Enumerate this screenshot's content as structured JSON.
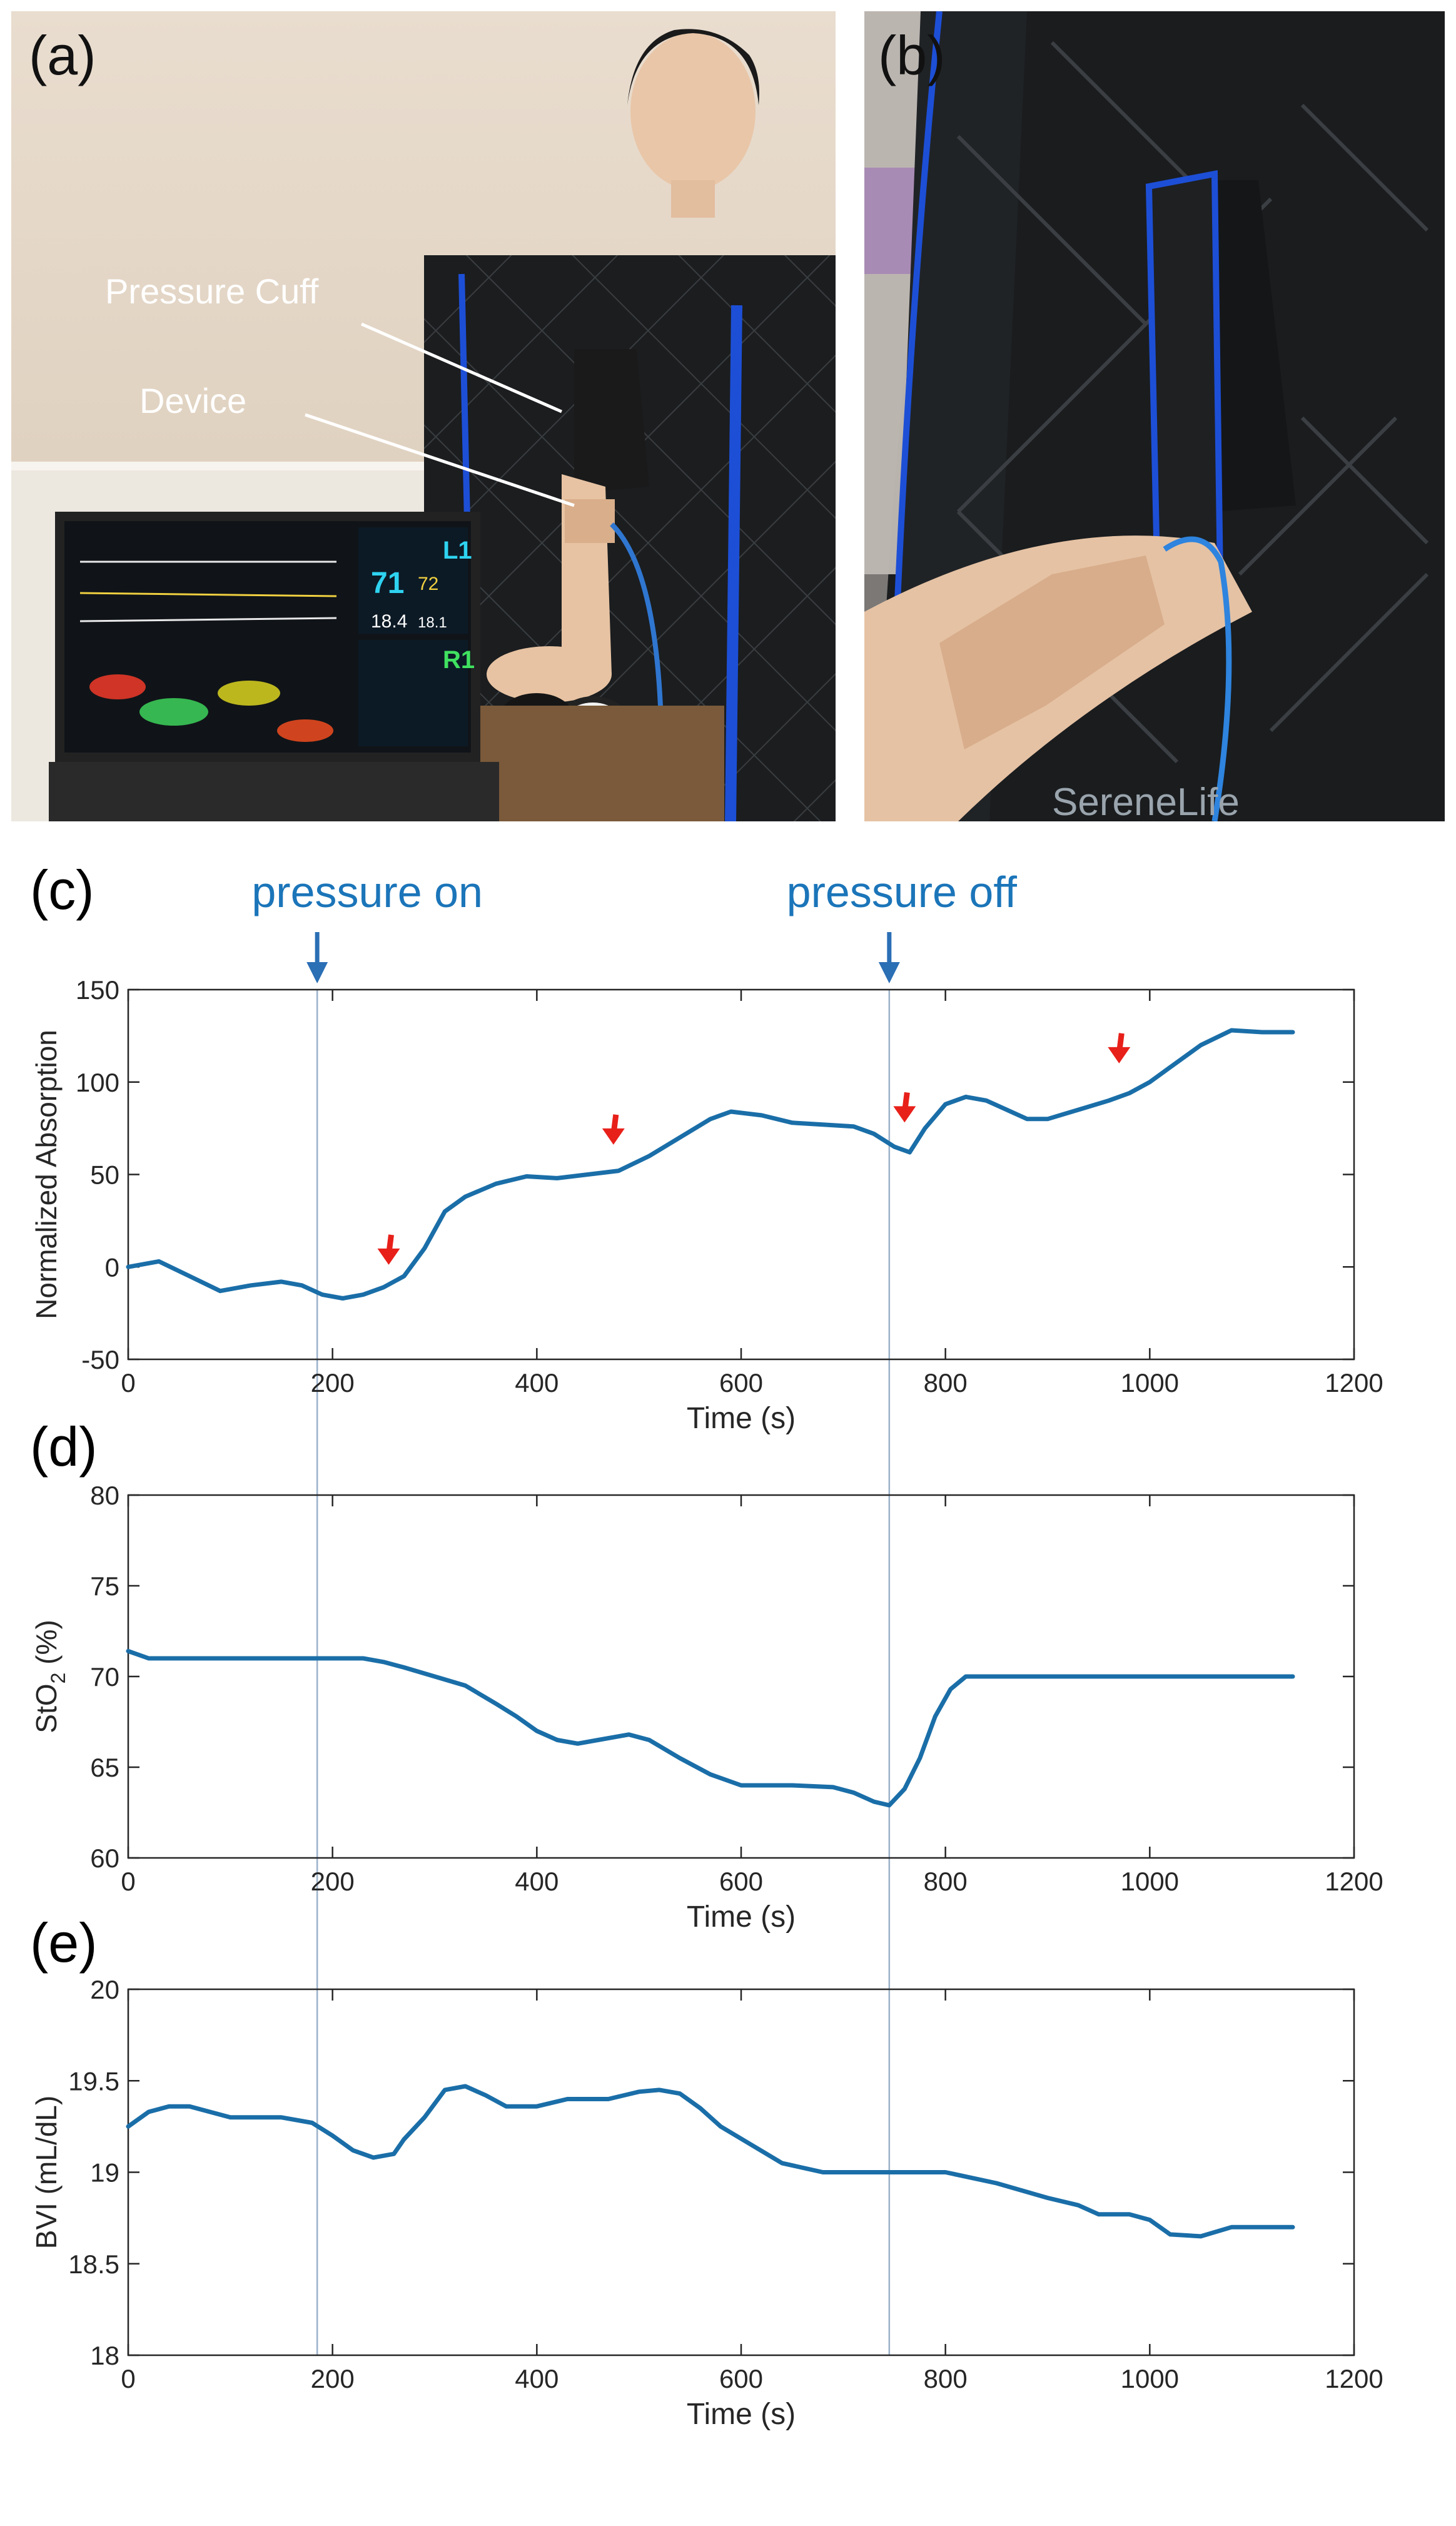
{
  "panels": {
    "a": "(a)",
    "b": "(b)",
    "c": "(c)",
    "d": "(d)",
    "e": "(e)"
  },
  "photo_a": {
    "label_cuff": "Pressure Cuff",
    "label_device": "Device",
    "monitor": {
      "l1": "L1",
      "r1": "R1",
      "big": "71",
      "small": "72",
      "v1": "18.4",
      "v2": "18.1"
    }
  },
  "photo_b": {
    "brand": "SereneLife"
  },
  "events": {
    "on_label": "pressure on",
    "on_time": 185,
    "off_label": "pressure off",
    "off_time": 745
  },
  "colors": {
    "series": "#1a6ea8",
    "event_text": "#1b75b9",
    "event_arrow": "#2b6fb5",
    "marker": "#e8201a"
  },
  "chart_data": [
    {
      "type": "line",
      "panel": "c",
      "xlabel": "Time (s)",
      "ylabel": "Normalized Absorption",
      "xlim": [
        0,
        1200
      ],
      "ylim": [
        -50,
        150
      ],
      "xticks": [
        0,
        200,
        400,
        600,
        800,
        1000,
        1200
      ],
      "yticks": [
        -50,
        0,
        50,
        100,
        150
      ],
      "series": [
        {
          "x": [
            0,
            30,
            60,
            90,
            120,
            150,
            170,
            190,
            210,
            230,
            250,
            270,
            290,
            310,
            330,
            360,
            390,
            420,
            450,
            480,
            510,
            540,
            570,
            590,
            620,
            650,
            680,
            710,
            730,
            750,
            765,
            780,
            800,
            820,
            840,
            860,
            880,
            900,
            930,
            960,
            980,
            1000,
            1020,
            1050,
            1080,
            1110,
            1140
          ],
          "y": [
            0,
            3,
            -5,
            -13,
            -10,
            -8,
            -10,
            -15,
            -17,
            -15,
            -11,
            -5,
            10,
            30,
            38,
            45,
            49,
            48,
            50,
            52,
            60,
            70,
            80,
            84,
            82,
            78,
            77,
            76,
            72,
            65,
            62,
            75,
            88,
            92,
            90,
            85,
            80,
            80,
            85,
            90,
            94,
            100,
            108,
            120,
            128,
            127,
            127
          ]
        }
      ],
      "markers": [
        {
          "x": 255,
          "y": -7
        },
        {
          "x": 475,
          "y": 58
        },
        {
          "x": 760,
          "y": 70
        },
        {
          "x": 970,
          "y": 102
        }
      ]
    },
    {
      "type": "line",
      "panel": "d",
      "xlabel": "Time (s)",
      "ylabel": "StO",
      "ylabel_sub": "2",
      "ylabel_suffix": " (%)",
      "xlim": [
        0,
        1200
      ],
      "ylim": [
        60,
        80
      ],
      "xticks": [
        0,
        200,
        400,
        600,
        800,
        1000,
        1200
      ],
      "yticks": [
        60,
        65,
        70,
        75,
        80
      ],
      "series": [
        {
          "x": [
            0,
            20,
            50,
            100,
            150,
            180,
            200,
            230,
            250,
            270,
            300,
            330,
            360,
            380,
            400,
            420,
            440,
            460,
            490,
            510,
            540,
            570,
            600,
            650,
            690,
            710,
            730,
            745,
            760,
            775,
            790,
            805,
            820,
            850,
            900,
            1000,
            1100,
            1140
          ],
          "y": [
            71.4,
            71,
            71,
            71,
            71,
            71,
            71,
            71,
            70.8,
            70.5,
            70,
            69.5,
            68.5,
            67.8,
            67,
            66.5,
            66.3,
            66.5,
            66.8,
            66.5,
            65.5,
            64.6,
            64,
            64,
            63.9,
            63.6,
            63.1,
            62.9,
            63.8,
            65.5,
            67.8,
            69.3,
            70,
            70,
            70,
            70,
            70,
            70
          ]
        }
      ]
    },
    {
      "type": "line",
      "panel": "e",
      "xlabel": "Time (s)",
      "ylabel": "BVI (mL/dL)",
      "xlim": [
        0,
        1200
      ],
      "ylim": [
        18,
        20
      ],
      "xticks": [
        0,
        200,
        400,
        600,
        800,
        1000,
        1200
      ],
      "yticks": [
        18,
        18.5,
        19,
        19.5,
        20
      ],
      "series": [
        {
          "x": [
            0,
            20,
            40,
            60,
            100,
            150,
            180,
            200,
            220,
            240,
            260,
            270,
            290,
            310,
            330,
            350,
            370,
            400,
            430,
            470,
            500,
            520,
            540,
            560,
            580,
            610,
            640,
            680,
            720,
            760,
            800,
            850,
            900,
            930,
            950,
            980,
            1000,
            1020,
            1050,
            1080,
            1100,
            1140
          ],
          "y": [
            19.25,
            19.33,
            19.36,
            19.36,
            19.3,
            19.3,
            19.27,
            19.2,
            19.12,
            19.08,
            19.1,
            19.18,
            19.3,
            19.45,
            19.47,
            19.42,
            19.36,
            19.36,
            19.4,
            19.4,
            19.44,
            19.45,
            19.43,
            19.35,
            19.25,
            19.15,
            19.05,
            19,
            19,
            19,
            19,
            18.94,
            18.86,
            18.82,
            18.77,
            18.77,
            18.74,
            18.66,
            18.65,
            18.7,
            18.7,
            18.7
          ]
        }
      ]
    }
  ]
}
